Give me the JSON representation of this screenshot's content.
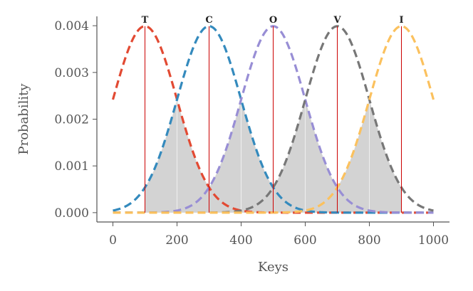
{
  "chart_data": {
    "type": "line",
    "xlabel": "Keys",
    "ylabel": "Probability",
    "xlim": [
      -50,
      1050
    ],
    "ylim": [
      -0.0002,
      0.0042
    ],
    "xticks": [
      0,
      200,
      400,
      600,
      800,
      1000
    ],
    "xtick_labels": [
      "0",
      "200",
      "400",
      "600",
      "800",
      "1000"
    ],
    "yticks": [
      0.0,
      0.001,
      0.002,
      0.003,
      0.004
    ],
    "ytick_labels": [
      "0.000",
      "0.001",
      "0.002",
      "0.003",
      "0.004"
    ],
    "grid": false,
    "x_range": [
      0,
      1000
    ],
    "series": [
      {
        "mean": 100,
        "std": 100,
        "color": "#e24a33",
        "style": "dashed"
      },
      {
        "mean": 300,
        "std": 100,
        "color": "#348abd",
        "style": "dashed"
      },
      {
        "mean": 500,
        "std": 100,
        "color": "#988ed5",
        "style": "dashed"
      },
      {
        "mean": 700,
        "std": 100,
        "color": "#777777",
        "style": "dashed"
      },
      {
        "mean": 900,
        "std": 100,
        "color": "#fbc15e",
        "style": "dashed"
      }
    ],
    "markers": [
      {
        "label": "T",
        "x": 100
      },
      {
        "label": "C",
        "x": 300
      },
      {
        "label": "O",
        "x": 500
      },
      {
        "label": "V",
        "x": 700
      },
      {
        "label": "I",
        "x": 900
      }
    ],
    "marker_color": "#cc0000",
    "shade_color": "#d3d3d3",
    "shade_lines": [
      200,
      400,
      600,
      800
    ]
  }
}
